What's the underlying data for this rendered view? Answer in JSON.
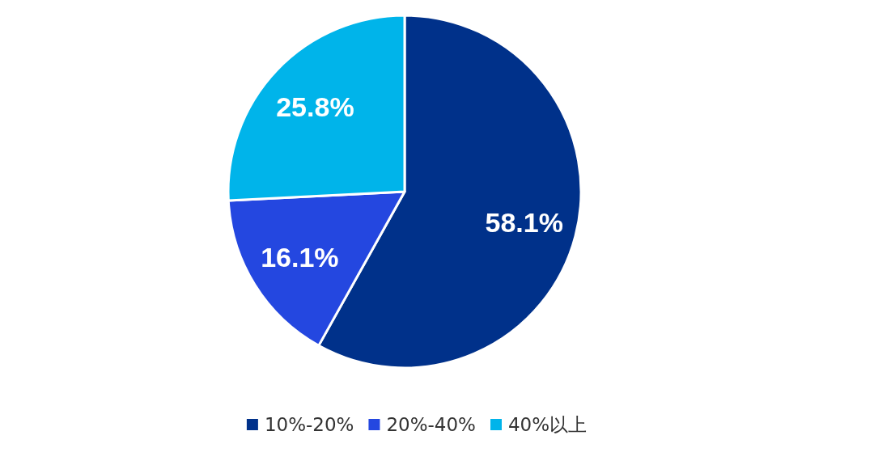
{
  "chart_data": {
    "type": "pie",
    "categories": [
      "10%-20%",
      "20%-40%",
      "40%以上"
    ],
    "values": [
      58.1,
      16.1,
      25.8
    ],
    "colors": [
      "#00318a",
      "#2447e0",
      "#00b4ea"
    ],
    "value_labels": [
      "58.1%",
      "16.1%",
      "25.8%"
    ],
    "legend": "bottom"
  }
}
